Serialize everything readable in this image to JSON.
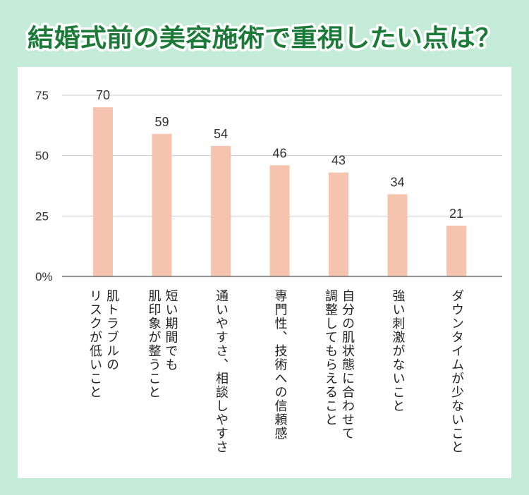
{
  "colors": {
    "background": "#c5ecd9",
    "panel": "#ffffff",
    "title_fill": "#1b7a37",
    "title_outline": "#ffffff",
    "bar": "#f6c4ae",
    "grid": "#cccccc",
    "axis": "#555555",
    "text": "#222222"
  },
  "chart_data": {
    "type": "bar",
    "title": "結婚式前の美容施術で重視したい点は？",
    "categories": [
      "肌トラブルの\nリスクが低いこと",
      "短い期間でも\n肌印象が整うこと",
      "通いやすさ、相談しやすさ",
      "専門性、技術への信頼感",
      "自分の肌状態に合わせて\n調整してもらえること",
      "強い刺激がないこと",
      "ダウンタイムが少ないこと"
    ],
    "values": [
      70,
      59,
      54,
      46,
      43,
      34,
      21
    ],
    "ylim": [
      0,
      75
    ],
    "y_ticks": [
      0,
      25,
      50,
      75
    ],
    "y_tick_labels": [
      "0%",
      "25",
      "50",
      "75"
    ],
    "grid": true,
    "legend": false
  }
}
